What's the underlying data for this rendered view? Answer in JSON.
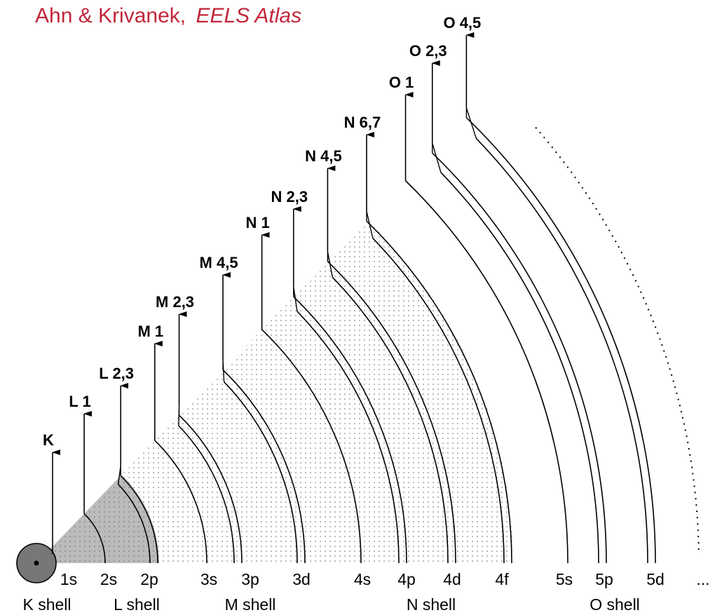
{
  "header": {
    "author": "Ahn & Krivanek,",
    "source": "EELS Atlas"
  },
  "edges": [
    "K",
    "L 1",
    "L 2,3",
    "M 1",
    "M 2,3",
    "M 4,5",
    "N 1",
    "N 2,3",
    "N 4,5",
    "N 6,7",
    "O 1",
    "O 2,3",
    "O 4,5"
  ],
  "subshells": [
    "1s",
    "2s",
    "2p",
    "3s",
    "3p",
    "3d",
    "4s",
    "4p",
    "4d",
    "4f",
    "5s",
    "5p",
    "5d",
    "..."
  ],
  "shells": [
    "K shell",
    "L shell",
    "M shell",
    "N shell",
    "O shell"
  ]
}
